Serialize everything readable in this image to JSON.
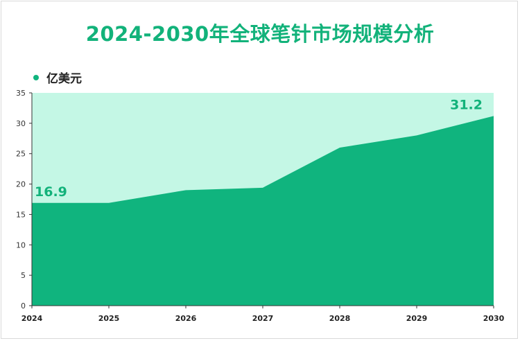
{
  "colors": {
    "title": "#12b27a",
    "area_fill": "#10b47e",
    "plot_background": "#c4f7e5",
    "data_label": "#12b27a",
    "axis": "#333333"
  },
  "chart_data": {
    "type": "area",
    "title": "2024-2030年全球笔针市场规模分析",
    "xlabel": "",
    "ylabel": "",
    "categories": [
      "2024",
      "2025",
      "2026",
      "2027",
      "2028",
      "2029",
      "2030"
    ],
    "series": [
      {
        "name": "亿美元",
        "values": [
          16.9,
          16.9,
          19.0,
          19.4,
          26.0,
          28.0,
          31.2
        ]
      }
    ],
    "ylim": [
      0,
      35
    ],
    "yticks": [
      "0",
      "5",
      "10",
      "15",
      "20",
      "25",
      "30",
      "35"
    ],
    "data_labels": [
      {
        "index": 0,
        "text": "16.9"
      },
      {
        "index": 6,
        "text": "31.2"
      }
    ],
    "legend": "top-left",
    "grid": false
  }
}
